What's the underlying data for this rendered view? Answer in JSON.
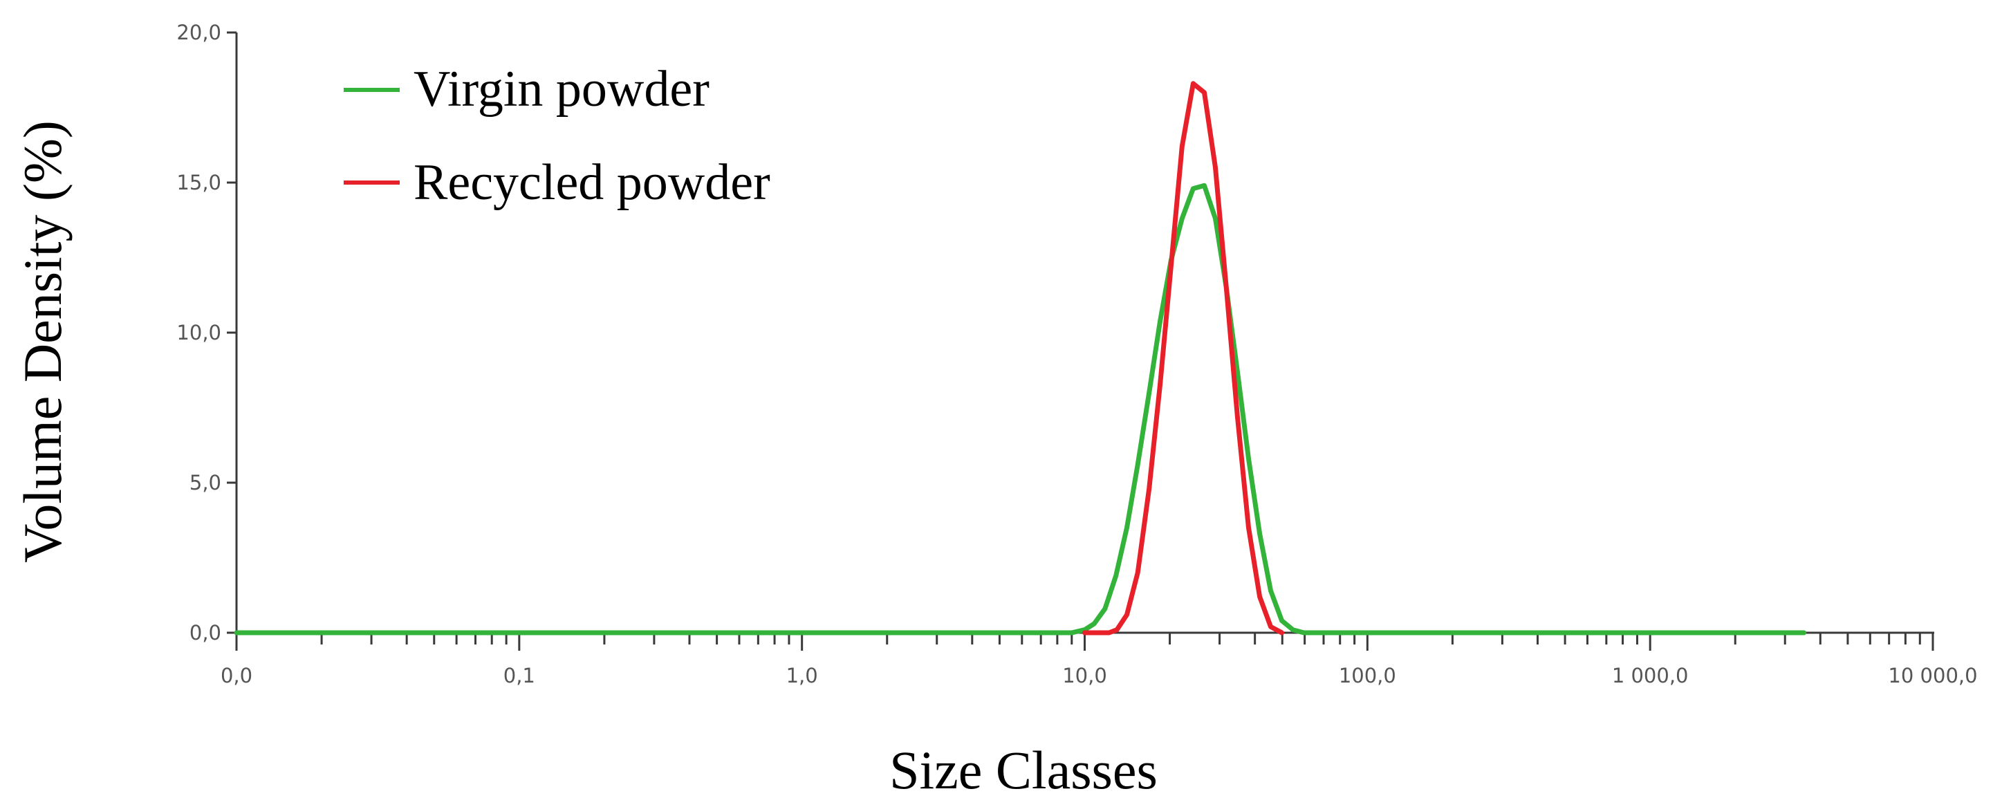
{
  "chart_data": {
    "type": "line",
    "xlabel": "Size Classes",
    "ylabel": "Volume Density (%)",
    "xscale": "log",
    "xlim": [
      0.01,
      10000
    ],
    "ylim": [
      0,
      20
    ],
    "x_tick_values": [
      0.01,
      0.1,
      1,
      10,
      100,
      1000,
      10000
    ],
    "x_tick_labels": [
      "0,0",
      "0,1",
      "1,0",
      "10,0",
      "100,0",
      "1 000,0",
      "10 000,0"
    ],
    "y_tick_values": [
      0,
      5,
      10,
      15,
      20
    ],
    "y_tick_labels": [
      "0,0",
      "5,0",
      "10,0",
      "15,0",
      "20,0"
    ],
    "grid": false,
    "legend_position": "top-left",
    "series": [
      {
        "name": "Virgin powder",
        "color": "#33b33a",
        "points": [
          [
            0.01,
            0
          ],
          [
            1,
            0
          ],
          [
            9.0,
            0
          ],
          [
            10.0,
            0.1
          ],
          [
            10.8,
            0.3
          ],
          [
            11.8,
            0.8
          ],
          [
            12.9,
            1.9
          ],
          [
            14.1,
            3.5
          ],
          [
            15.4,
            5.6
          ],
          [
            16.9,
            8.0
          ],
          [
            18.5,
            10.4
          ],
          [
            20.2,
            12.4
          ],
          [
            22.1,
            13.8
          ],
          [
            24.2,
            14.8
          ],
          [
            26.5,
            14.9
          ],
          [
            29.0,
            13.8
          ],
          [
            31.7,
            11.5
          ],
          [
            34.7,
            8.7
          ],
          [
            38.0,
            5.8
          ],
          [
            41.6,
            3.3
          ],
          [
            45.5,
            1.4
          ],
          [
            49.8,
            0.4
          ],
          [
            54.5,
            0.1
          ],
          [
            59.6,
            0
          ],
          [
            100,
            0
          ],
          [
            1000,
            0
          ],
          [
            3500,
            0
          ]
        ]
      },
      {
        "name": "Recycled powder",
        "color": "#e8202a",
        "points": [
          [
            10.0,
            0
          ],
          [
            12.2,
            0
          ],
          [
            13.0,
            0.1
          ],
          [
            14.1,
            0.6
          ],
          [
            15.4,
            2.0
          ],
          [
            16.9,
            4.8
          ],
          [
            18.5,
            8.3
          ],
          [
            20.2,
            12.2
          ],
          [
            22.1,
            16.2
          ],
          [
            24.2,
            18.3
          ],
          [
            26.5,
            18.0
          ],
          [
            29.0,
            15.5
          ],
          [
            31.7,
            11.5
          ],
          [
            34.7,
            7.2
          ],
          [
            38.0,
            3.5
          ],
          [
            41.6,
            1.2
          ],
          [
            45.5,
            0.2
          ],
          [
            49.8,
            0
          ]
        ]
      }
    ]
  }
}
